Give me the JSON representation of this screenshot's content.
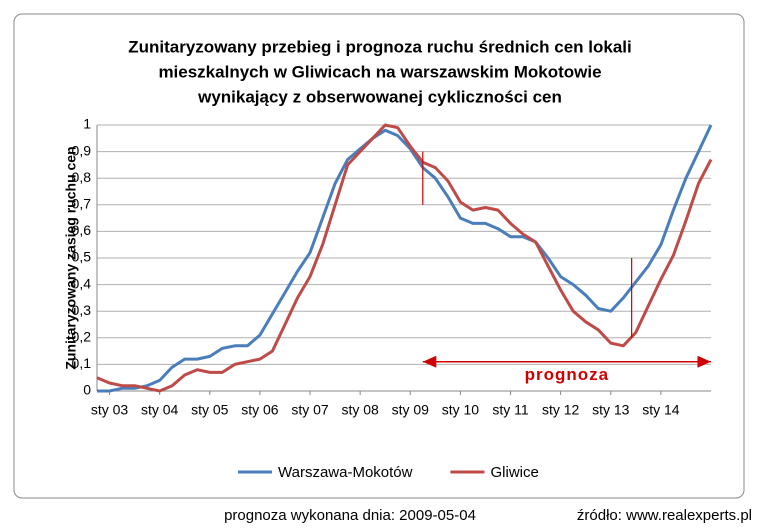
{
  "chart_data": {
    "type": "line",
    "title": [
      "Zunitaryzowany przebieg i prognoza ruchu średnich cen lokali",
      "mieszkalnych w Gliwicach na warszawskim Mokotowie",
      "wynikający z obserwowanej cykliczności cen"
    ],
    "y_label": "Zunitaryzowany zasięg ruchu cen",
    "x": [
      0,
      3,
      6,
      9,
      12,
      15,
      18,
      21,
      24,
      27,
      30,
      33,
      36,
      39,
      42,
      45,
      48,
      51,
      54,
      57,
      60,
      63,
      66,
      69,
      72,
      75,
      78,
      81,
      84,
      87,
      90,
      93,
      96,
      99,
      102,
      105,
      108,
      111,
      114,
      117,
      120,
      123,
      126,
      129,
      132,
      135,
      138,
      141,
      144,
      147
    ],
    "series": [
      {
        "name": "Warszawa-Mokotów",
        "color": "#4a7ebb",
        "values": [
          0.0,
          0.0,
          0.01,
          0.01,
          0.02,
          0.04,
          0.09,
          0.12,
          0.12,
          0.13,
          0.16,
          0.17,
          0.17,
          0.21,
          0.29,
          0.37,
          0.45,
          0.52,
          0.65,
          0.78,
          0.87,
          0.91,
          0.95,
          0.98,
          0.96,
          0.91,
          0.84,
          0.8,
          0.73,
          0.65,
          0.63,
          0.63,
          0.61,
          0.58,
          0.58,
          0.56,
          0.5,
          0.43,
          0.4,
          0.36,
          0.31,
          0.3,
          0.35,
          0.41,
          0.47,
          0.55,
          0.68,
          0.8,
          0.9,
          1.0
        ]
      },
      {
        "name": "Gliwice",
        "color": "#be4b48",
        "values": [
          0.05,
          0.03,
          0.02,
          0.02,
          0.01,
          0.0,
          0.02,
          0.06,
          0.08,
          0.07,
          0.07,
          0.1,
          0.11,
          0.12,
          0.15,
          0.25,
          0.35,
          0.43,
          0.55,
          0.7,
          0.85,
          0.9,
          0.95,
          1.0,
          0.99,
          0.92,
          0.86,
          0.84,
          0.79,
          0.71,
          0.68,
          0.69,
          0.68,
          0.63,
          0.59,
          0.56,
          0.47,
          0.38,
          0.3,
          0.26,
          0.23,
          0.18,
          0.17,
          0.22,
          0.32,
          0.42,
          0.51,
          0.64,
          0.78,
          0.87
        ]
      }
    ],
    "xlim": [
      0,
      147
    ],
    "xticks": [
      {
        "value": 3,
        "label": "sty 03"
      },
      {
        "value": 15,
        "label": "sty 04"
      },
      {
        "value": 27,
        "label": "sty 05"
      },
      {
        "value": 39,
        "label": "sty 06"
      },
      {
        "value": 51,
        "label": "sty 07"
      },
      {
        "value": 63,
        "label": "sty 08"
      },
      {
        "value": 75,
        "label": "sty 09"
      },
      {
        "value": 87,
        "label": "sty 10"
      },
      {
        "value": 99,
        "label": "sty 11"
      },
      {
        "value": 111,
        "label": "sty 12"
      },
      {
        "value": 123,
        "label": "sty 13"
      },
      {
        "value": 135,
        "label": "sty 14"
      }
    ],
    "ylim": [
      0,
      1
    ],
    "yticks": [
      0,
      {
        "value": 0.1,
        "label": "0,1"
      },
      {
        "value": 0.2,
        "label": "0,2"
      },
      {
        "value": 0.3,
        "label": "0,3"
      },
      {
        "value": 0.4,
        "label": "0,4"
      },
      {
        "value": 0.5,
        "label": "0,5"
      },
      {
        "value": 0.6,
        "label": "0,6"
      },
      {
        "value": 0.7,
        "label": "0,7"
      },
      {
        "value": 0.8,
        "label": "0,8"
      },
      {
        "value": 0.9,
        "label": "0,9"
      },
      1
    ],
    "grid": true,
    "legend": "bottom",
    "forecast": {
      "label": "prognoza",
      "from": 78,
      "to": 147,
      "y": 0.11,
      "color": "#d00000"
    },
    "vlines": [
      {
        "x": 78,
        "y": [
          0.7,
          0.9
        ]
      },
      {
        "x": 128,
        "y": [
          0.2,
          0.5
        ]
      }
    ]
  },
  "footer": {
    "note": "prognoza wykonana dnia: 2009-05-04",
    "source": "źródło: www.realexperts.pl"
  }
}
